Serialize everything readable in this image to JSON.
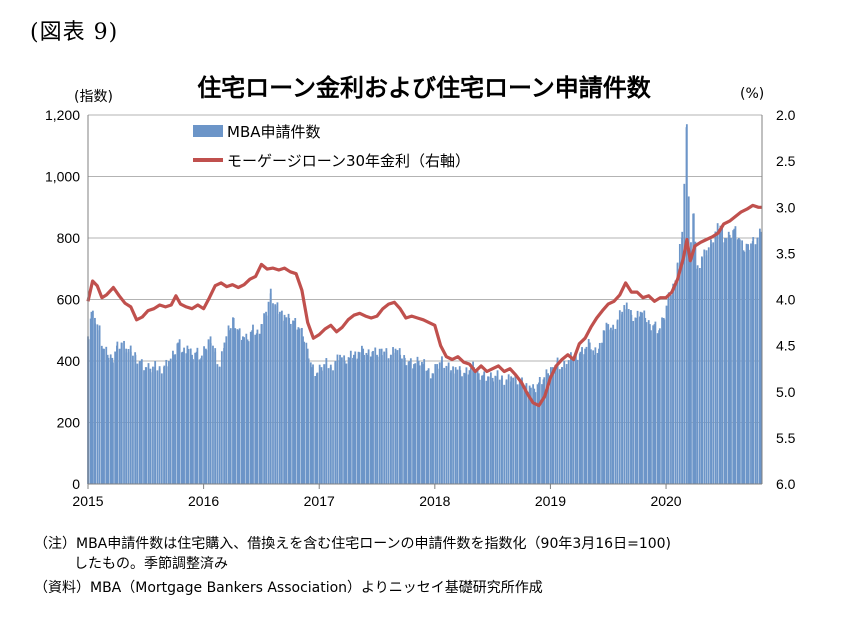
{
  "figure_label": "(図表 9)",
  "chart_data": {
    "type": "bar+line",
    "title": "住宅ローン金利および住宅ローン申請件数",
    "left_axis_unit": "(指数)",
    "right_axis_unit": "(%)",
    "left_ylim": [
      0,
      1200
    ],
    "left_ticks": [
      "0",
      "200",
      "400",
      "600",
      "800",
      "1,000",
      "1,200"
    ],
    "right_ylim": [
      2.0,
      6.0
    ],
    "right_inverted": true,
    "right_ticks": [
      "2.0",
      "2.5",
      "3.0",
      "3.5",
      "4.0",
      "4.5",
      "5.0",
      "5.5",
      "6.0"
    ],
    "x_range": [
      2015.0,
      2020.83
    ],
    "x_ticks": [
      "2015",
      "2016",
      "2017",
      "2018",
      "2019",
      "2020"
    ],
    "grid": true,
    "legend_position": "top-left",
    "legend": [
      {
        "label": "MBA申請件数",
        "color": "#6c95c8",
        "kind": "bar"
      },
      {
        "label": "モーゲージローン30年金利（右軸）",
        "color": "#c0504d",
        "kind": "line"
      }
    ],
    "series": [
      {
        "name": "MBA申請件数",
        "axis": "left",
        "points": [
          [
            2015.0,
            480
          ],
          [
            2015.03,
            560
          ],
          [
            2015.06,
            540
          ],
          [
            2015.1,
            500
          ],
          [
            2015.13,
            440
          ],
          [
            2015.17,
            420
          ],
          [
            2015.21,
            410
          ],
          [
            2015.25,
            450
          ],
          [
            2015.29,
            460
          ],
          [
            2015.33,
            440
          ],
          [
            2015.37,
            430
          ],
          [
            2015.41,
            420
          ],
          [
            2015.45,
            400
          ],
          [
            2015.5,
            380
          ],
          [
            2015.54,
            375
          ],
          [
            2015.58,
            380
          ],
          [
            2015.62,
            375
          ],
          [
            2015.66,
            385
          ],
          [
            2015.7,
            400
          ],
          [
            2015.74,
            420
          ],
          [
            2015.78,
            460
          ],
          [
            2015.82,
            430
          ],
          [
            2015.86,
            450
          ],
          [
            2015.9,
            420
          ],
          [
            2015.94,
            430
          ],
          [
            2015.98,
            410
          ],
          [
            2016.02,
            440
          ],
          [
            2016.06,
            480
          ],
          [
            2016.1,
            430
          ],
          [
            2016.14,
            380
          ],
          [
            2016.18,
            460
          ],
          [
            2016.22,
            500
          ],
          [
            2016.26,
            540
          ],
          [
            2016.3,
            500
          ],
          [
            2016.34,
            480
          ],
          [
            2016.38,
            470
          ],
          [
            2016.42,
            500
          ],
          [
            2016.46,
            490
          ],
          [
            2016.5,
            520
          ],
          [
            2016.54,
            560
          ],
          [
            2016.58,
            620
          ],
          [
            2016.62,
            580
          ],
          [
            2016.66,
            560
          ],
          [
            2016.7,
            550
          ],
          [
            2016.74,
            540
          ],
          [
            2016.78,
            530
          ],
          [
            2016.82,
            510
          ],
          [
            2016.86,
            480
          ],
          [
            2016.9,
            440
          ],
          [
            2016.94,
            380
          ],
          [
            2016.98,
            360
          ],
          [
            2017.02,
            380
          ],
          [
            2017.06,
            390
          ],
          [
            2017.1,
            380
          ],
          [
            2017.14,
            400
          ],
          [
            2017.18,
            420
          ],
          [
            2017.22,
            400
          ],
          [
            2017.26,
            410
          ],
          [
            2017.3,
            420
          ],
          [
            2017.34,
            430
          ],
          [
            2017.38,
            440
          ],
          [
            2017.42,
            420
          ],
          [
            2017.46,
            430
          ],
          [
            2017.5,
            420
          ],
          [
            2017.54,
            440
          ],
          [
            2017.58,
            430
          ],
          [
            2017.62,
            420
          ],
          [
            2017.66,
            440
          ],
          [
            2017.7,
            420
          ],
          [
            2017.74,
            410
          ],
          [
            2017.78,
            400
          ],
          [
            2017.82,
            390
          ],
          [
            2017.86,
            400
          ],
          [
            2017.9,
            390
          ],
          [
            2017.94,
            370
          ],
          [
            2017.98,
            360
          ],
          [
            2018.02,
            390
          ],
          [
            2018.06,
            400
          ],
          [
            2018.1,
            380
          ],
          [
            2018.14,
            370
          ],
          [
            2018.18,
            380
          ],
          [
            2018.22,
            370
          ],
          [
            2018.26,
            360
          ],
          [
            2018.3,
            370
          ],
          [
            2018.34,
            380
          ],
          [
            2018.38,
            360
          ],
          [
            2018.42,
            355
          ],
          [
            2018.46,
            350
          ],
          [
            2018.5,
            345
          ],
          [
            2018.54,
            350
          ],
          [
            2018.58,
            345
          ],
          [
            2018.62,
            340
          ],
          [
            2018.66,
            350
          ],
          [
            2018.7,
            340
          ],
          [
            2018.74,
            330
          ],
          [
            2018.78,
            320
          ],
          [
            2018.82,
            320
          ],
          [
            2018.86,
            310
          ],
          [
            2018.9,
            330
          ],
          [
            2018.94,
            340
          ],
          [
            2018.98,
            360
          ],
          [
            2019.02,
            380
          ],
          [
            2019.06,
            400
          ],
          [
            2019.1,
            380
          ],
          [
            2019.14,
            390
          ],
          [
            2019.18,
            410
          ],
          [
            2019.22,
            420
          ],
          [
            2019.26,
            430
          ],
          [
            2019.3,
            440
          ],
          [
            2019.34,
            460
          ],
          [
            2019.38,
            420
          ],
          [
            2019.42,
            440
          ],
          [
            2019.46,
            500
          ],
          [
            2019.5,
            520
          ],
          [
            2019.54,
            500
          ],
          [
            2019.58,
            530
          ],
          [
            2019.62,
            560
          ],
          [
            2019.66,
            590
          ],
          [
            2019.7,
            550
          ],
          [
            2019.74,
            540
          ],
          [
            2019.78,
            560
          ],
          [
            2019.82,
            540
          ],
          [
            2019.86,
            520
          ],
          [
            2019.9,
            520
          ],
          [
            2019.94,
            500
          ],
          [
            2019.98,
            540
          ],
          [
            2020.02,
            600
          ],
          [
            2020.06,
            640
          ],
          [
            2020.1,
            720
          ],
          [
            2020.14,
            820
          ],
          [
            2020.18,
            1170
          ],
          [
            2020.21,
            760
          ],
          [
            2020.24,
            880
          ],
          [
            2020.27,
            700
          ],
          [
            2020.31,
            740
          ],
          [
            2020.35,
            760
          ],
          [
            2020.39,
            780
          ],
          [
            2020.43,
            820
          ],
          [
            2020.47,
            840
          ],
          [
            2020.51,
            800
          ],
          [
            2020.55,
            810
          ],
          [
            2020.59,
            830
          ],
          [
            2020.63,
            800
          ],
          [
            2020.67,
            760
          ],
          [
            2020.71,
            780
          ],
          [
            2020.75,
            790
          ],
          [
            2020.79,
            800
          ],
          [
            2020.82,
            820
          ]
        ]
      },
      {
        "name": "モーゲージローン30年金利（右軸）",
        "axis": "right",
        "points": [
          [
            2015.0,
            4.02
          ],
          [
            2015.04,
            3.8
          ],
          [
            2015.08,
            3.85
          ],
          [
            2015.12,
            3.98
          ],
          [
            2015.16,
            3.95
          ],
          [
            2015.22,
            3.87
          ],
          [
            2015.27,
            3.96
          ],
          [
            2015.32,
            4.04
          ],
          [
            2015.37,
            4.08
          ],
          [
            2015.42,
            4.22
          ],
          [
            2015.47,
            4.19
          ],
          [
            2015.52,
            4.12
          ],
          [
            2015.57,
            4.1
          ],
          [
            2015.62,
            4.06
          ],
          [
            2015.67,
            4.08
          ],
          [
            2015.72,
            4.06
          ],
          [
            2015.76,
            3.96
          ],
          [
            2015.8,
            4.05
          ],
          [
            2015.85,
            4.08
          ],
          [
            2015.9,
            4.1
          ],
          [
            2015.95,
            4.06
          ],
          [
            2016.0,
            4.1
          ],
          [
            2016.05,
            3.98
          ],
          [
            2016.1,
            3.85
          ],
          [
            2016.15,
            3.82
          ],
          [
            2016.2,
            3.86
          ],
          [
            2016.25,
            3.84
          ],
          [
            2016.3,
            3.87
          ],
          [
            2016.35,
            3.84
          ],
          [
            2016.4,
            3.78
          ],
          [
            2016.45,
            3.75
          ],
          [
            2016.5,
            3.62
          ],
          [
            2016.55,
            3.67
          ],
          [
            2016.6,
            3.66
          ],
          [
            2016.65,
            3.68
          ],
          [
            2016.7,
            3.66
          ],
          [
            2016.75,
            3.7
          ],
          [
            2016.8,
            3.72
          ],
          [
            2016.85,
            3.9
          ],
          [
            2016.9,
            4.25
          ],
          [
            2016.95,
            4.42
          ],
          [
            2017.0,
            4.38
          ],
          [
            2017.05,
            4.32
          ],
          [
            2017.1,
            4.28
          ],
          [
            2017.15,
            4.35
          ],
          [
            2017.2,
            4.3
          ],
          [
            2017.25,
            4.22
          ],
          [
            2017.3,
            4.17
          ],
          [
            2017.35,
            4.15
          ],
          [
            2017.4,
            4.18
          ],
          [
            2017.45,
            4.2
          ],
          [
            2017.5,
            4.18
          ],
          [
            2017.55,
            4.1
          ],
          [
            2017.6,
            4.05
          ],
          [
            2017.65,
            4.03
          ],
          [
            2017.7,
            4.1
          ],
          [
            2017.75,
            4.2
          ],
          [
            2017.8,
            4.18
          ],
          [
            2017.85,
            4.2
          ],
          [
            2017.9,
            4.22
          ],
          [
            2017.95,
            4.25
          ],
          [
            2018.0,
            4.28
          ],
          [
            2018.05,
            4.5
          ],
          [
            2018.1,
            4.62
          ],
          [
            2018.15,
            4.65
          ],
          [
            2018.2,
            4.62
          ],
          [
            2018.25,
            4.68
          ],
          [
            2018.3,
            4.7
          ],
          [
            2018.35,
            4.78
          ],
          [
            2018.4,
            4.72
          ],
          [
            2018.45,
            4.78
          ],
          [
            2018.5,
            4.75
          ],
          [
            2018.55,
            4.72
          ],
          [
            2018.6,
            4.78
          ],
          [
            2018.65,
            4.75
          ],
          [
            2018.7,
            4.82
          ],
          [
            2018.75,
            4.9
          ],
          [
            2018.8,
            5.02
          ],
          [
            2018.85,
            5.12
          ],
          [
            2018.9,
            5.15
          ],
          [
            2018.95,
            5.05
          ],
          [
            2019.0,
            4.85
          ],
          [
            2019.05,
            4.72
          ],
          [
            2019.1,
            4.65
          ],
          [
            2019.15,
            4.6
          ],
          [
            2019.2,
            4.65
          ],
          [
            2019.25,
            4.48
          ],
          [
            2019.3,
            4.42
          ],
          [
            2019.35,
            4.3
          ],
          [
            2019.4,
            4.2
          ],
          [
            2019.45,
            4.12
          ],
          [
            2019.5,
            4.05
          ],
          [
            2019.55,
            4.02
          ],
          [
            2019.6,
            3.95
          ],
          [
            2019.65,
            3.82
          ],
          [
            2019.7,
            3.92
          ],
          [
            2019.75,
            3.92
          ],
          [
            2019.8,
            3.98
          ],
          [
            2019.85,
            3.96
          ],
          [
            2019.9,
            4.02
          ],
          [
            2019.95,
            3.98
          ],
          [
            2020.0,
            3.98
          ],
          [
            2020.05,
            3.92
          ],
          [
            2020.1,
            3.78
          ],
          [
            2020.15,
            3.55
          ],
          [
            2020.18,
            3.35
          ],
          [
            2020.21,
            3.58
          ],
          [
            2020.25,
            3.42
          ],
          [
            2020.3,
            3.38
          ],
          [
            2020.35,
            3.35
          ],
          [
            2020.4,
            3.32
          ],
          [
            2020.45,
            3.28
          ],
          [
            2020.5,
            3.18
          ],
          [
            2020.55,
            3.15
          ],
          [
            2020.6,
            3.1
          ],
          [
            2020.65,
            3.05
          ],
          [
            2020.7,
            3.02
          ],
          [
            2020.75,
            2.98
          ],
          [
            2020.8,
            3.0
          ],
          [
            2020.83,
            3.0
          ]
        ]
      }
    ]
  },
  "notes": {
    "line1": "（注）MBA申請件数は住宅購入、借換えを含む住宅ローンの申請件数を指数化（90年3月16日=100)",
    "line2": "したもの。季節調整済み",
    "line3": "（資料）MBA（Mortgage Bankers Association）よりニッセイ基礎研究所作成"
  }
}
